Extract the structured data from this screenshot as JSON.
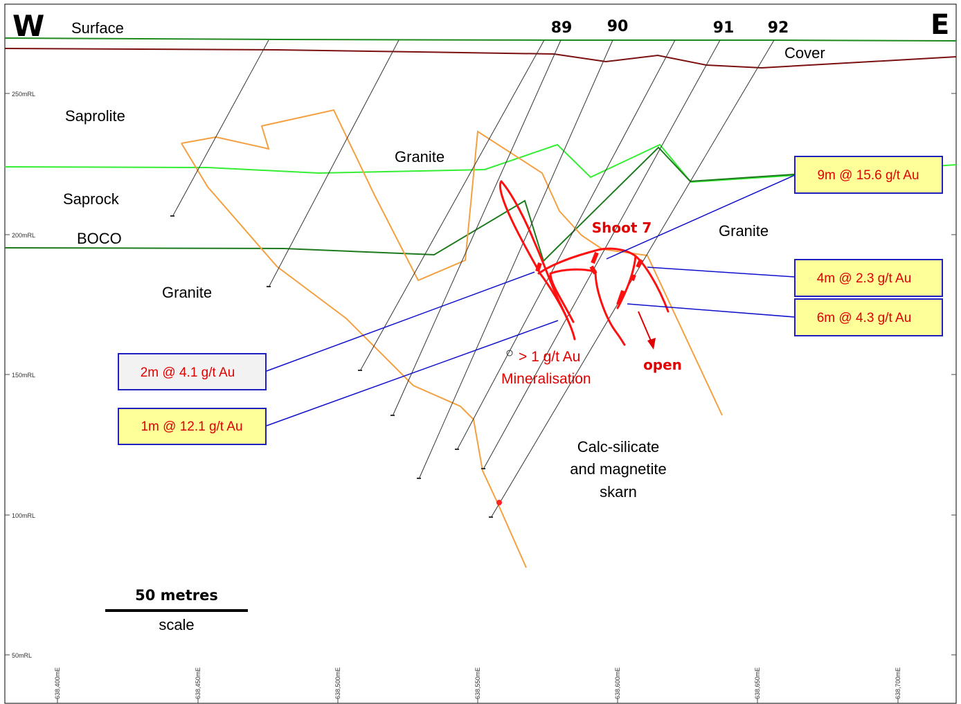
{
  "compass": {
    "west": "W",
    "east": "E"
  },
  "hole_labels": [
    "89",
    "90",
    "91",
    "92"
  ],
  "layers": {
    "surface": "Surface",
    "cover": "Cover",
    "saprolite": "Saprolite",
    "saprock": "Saprock",
    "boco": "BOCO",
    "granite_top": "Granite",
    "granite_left": "Granite",
    "granite_right": "Granite",
    "skarn_line1": "Calc-silicate",
    "skarn_line2": "and magnetite",
    "skarn_line3": "skarn"
  },
  "shoot": {
    "label": "Shoot 7",
    "open_label": "open"
  },
  "mineralisation_legend": {
    "line1": "> 1 g/t Au",
    "line2": "Mineralisation"
  },
  "intercepts": [
    {
      "id": "i1",
      "text": "9m @ 15.6 g/t Au"
    },
    {
      "id": "i2",
      "text": "4m @ 2.3 g/t Au"
    },
    {
      "id": "i3",
      "text": "6m @ 4.3 g/t Au"
    },
    {
      "id": "i4",
      "text": "2m @ 4.1 g/t Au"
    },
    {
      "id": "i5",
      "text": "1m @ 12.1 g/t Au"
    }
  ],
  "scale": {
    "title": "50 metres",
    "caption": "scale"
  },
  "rl_ticks": [
    "250mRL",
    "200mRL",
    "150mRL",
    "100mRL",
    "50mRL"
  ],
  "easting_ticks": [
    "638,400mE",
    "638,450mE",
    "638,500mE",
    "638,550mE",
    "638,600mE",
    "638,650mE",
    "638,700mE"
  ],
  "colors": {
    "surface": "#1e8a1e",
    "cover": "#7b1010",
    "saprock": "#33ee33",
    "boco": "#1e7a1e",
    "lithology_contact": "#f5a040",
    "drillhole": "#333333",
    "mineralisation": "#ff0000",
    "leader": "#1010cc",
    "box_fill": "#ffff99",
    "box_fill_grey": "#f2f2f2"
  }
}
